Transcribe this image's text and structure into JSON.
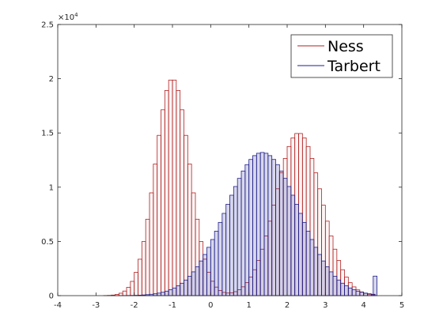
{
  "chart_data": {
    "type": "histogram",
    "xlim": [
      -4,
      5
    ],
    "ylim": [
      0,
      25000
    ],
    "x_ticks": [
      -4,
      -3,
      -2,
      -1,
      0,
      1,
      2,
      3,
      4,
      5
    ],
    "x_tick_labels": [
      "-4",
      "-3",
      "-2",
      "-1",
      "0",
      "1",
      "2",
      "3",
      "4",
      "5"
    ],
    "y_ticks": [
      0,
      5000,
      10000,
      15000,
      20000,
      25000
    ],
    "y_tick_labels": [
      "0",
      "0.5",
      "1",
      "1.5",
      "2",
      "2.5"
    ],
    "y_exponent_base": "×10",
    "y_exponent_power": "4",
    "legend_position": "top-right",
    "grid": false,
    "bin_width": 0.1,
    "series": [
      {
        "name": "Ness",
        "color": "#b22222",
        "components": [
          {
            "weight": 20000,
            "mean": -1.0,
            "sd": 0.45
          },
          {
            "weight": 15000,
            "mean": 2.3,
            "sd": 0.6
          }
        ]
      },
      {
        "name": "Tarbert",
        "color": "#1f1f8c",
        "components": [
          {
            "weight": 13200,
            "mean": 1.35,
            "sd": 0.95
          }
        ],
        "x_min": -3.0,
        "x_max": 4.3,
        "outlier_bin": {
          "x": 4.25,
          "value": 1800
        }
      }
    ]
  }
}
